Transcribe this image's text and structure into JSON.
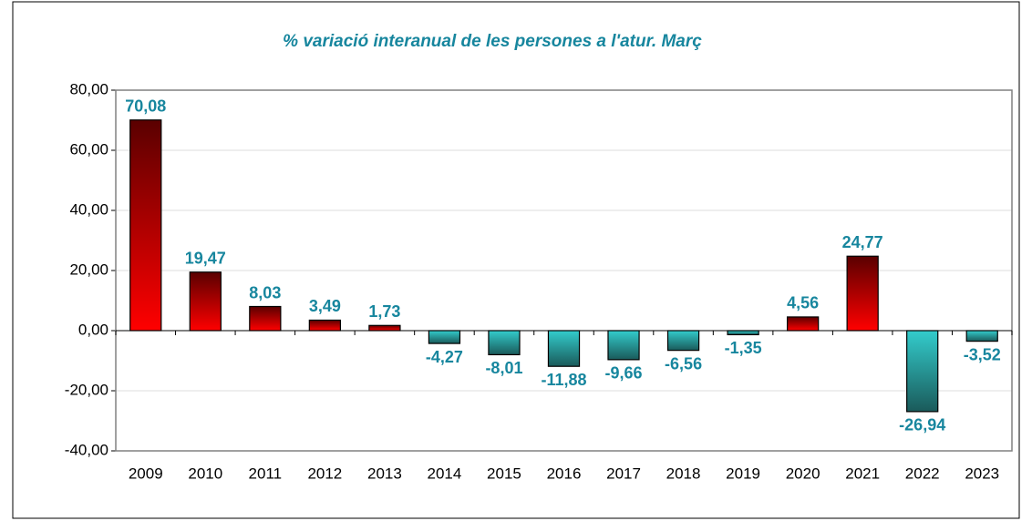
{
  "chart_data": {
    "type": "bar",
    "title": "% variació interanual de les persones a l'atur. Març",
    "categories": [
      "2009",
      "2010",
      "2011",
      "2012",
      "2013",
      "2014",
      "2015",
      "2016",
      "2017",
      "2018",
      "2019",
      "2020",
      "2021",
      "2022",
      "2023"
    ],
    "values": [
      70.08,
      19.47,
      8.03,
      3.49,
      1.73,
      -4.27,
      -8.01,
      -11.88,
      -9.66,
      -6.56,
      -1.35,
      4.56,
      24.77,
      -26.94,
      -3.52
    ],
    "value_labels": [
      "70,08",
      "19,47",
      "8,03",
      "3,49",
      "1,73",
      "-4,27",
      "-8,01",
      "-11,88",
      "-9,66",
      "-6,56",
      "-1,35",
      "4,56",
      "24,77",
      "-26,94",
      "-3,52"
    ],
    "positive_color": "#ff0000",
    "negative_color": "#33cccc",
    "ylim": [
      -40,
      80
    ],
    "yticks": [
      {
        "value": -40,
        "label": "-40,00"
      },
      {
        "value": -20,
        "label": "-20,00"
      },
      {
        "value": 0,
        "label": "0,00"
      },
      {
        "value": 20,
        "label": "20,00"
      },
      {
        "value": 40,
        "label": "40,00"
      },
      {
        "value": 60,
        "label": "60,00"
      },
      {
        "value": 80,
        "label": "80,00"
      }
    ],
    "grid": true
  }
}
